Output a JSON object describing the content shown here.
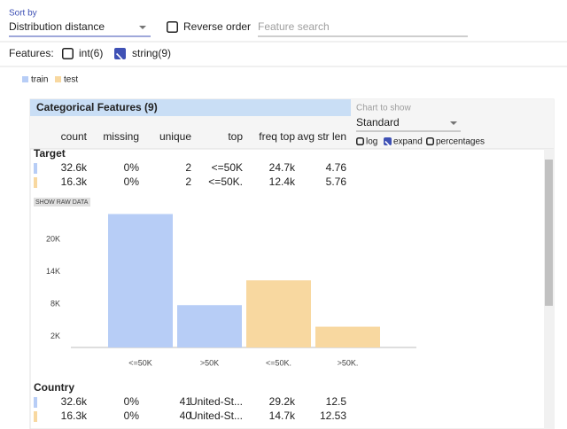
{
  "header": {
    "sort_label": "Sort by",
    "sort_value": "Distribution distance",
    "reverse_order": {
      "label": "Reverse order",
      "checked": false
    },
    "search_placeholder": "Feature search"
  },
  "features_filter": {
    "label": "Features:",
    "options": [
      {
        "label": "int(6)",
        "checked": false
      },
      {
        "label": "string(9)",
        "checked": true
      }
    ]
  },
  "legend": [
    {
      "name": "train",
      "color": "#b7cdf6"
    },
    {
      "name": "test",
      "color": "#f8d8a0"
    }
  ],
  "panel": {
    "title": "Categorical Features (9)",
    "chart_to_show": {
      "label": "Chart to show",
      "value": "Standard",
      "options": [
        {
          "label": "log",
          "checked": false
        },
        {
          "label": "expand",
          "checked": true
        },
        {
          "label": "percentages",
          "checked": false
        }
      ]
    },
    "columns": [
      "count",
      "missing",
      "unique",
      "top",
      "freq top",
      "avg str len"
    ],
    "features": [
      {
        "name": "Target",
        "rows": [
          [
            "32.6k",
            "0%",
            "2",
            "<=50K",
            "24.7k",
            "4.76"
          ],
          [
            "16.3k",
            "0%",
            "2",
            "<=50K.",
            "12.4k",
            "5.76"
          ]
        ],
        "show_raw_data": "SHOW RAW DATA",
        "chart_data": {
          "type": "bar",
          "categories": [
            "<=50K",
            ">50K",
            "<=50K.",
            ">50K."
          ],
          "values": [
            24720,
            7841,
            12435,
            3846
          ],
          "colors": [
            "#b7cdf6",
            "#b7cdf6",
            "#f8d8a0",
            "#f8d8a0"
          ],
          "ylim": [
            0,
            26600
          ],
          "yticks": [
            {
              "value": 2000,
              "label": "2K"
            },
            {
              "value": 8000,
              "label": "8K"
            },
            {
              "value": 14000,
              "label": "14K"
            },
            {
              "value": 20000,
              "label": "20K"
            }
          ]
        }
      },
      {
        "name": "Country",
        "rows": [
          [
            "32.6k",
            "0%",
            "41",
            "United-St...",
            "29.2k",
            "12.5"
          ],
          [
            "16.3k",
            "0%",
            "40",
            "United-St...",
            "14.7k",
            "12.53"
          ]
        ]
      }
    ]
  }
}
